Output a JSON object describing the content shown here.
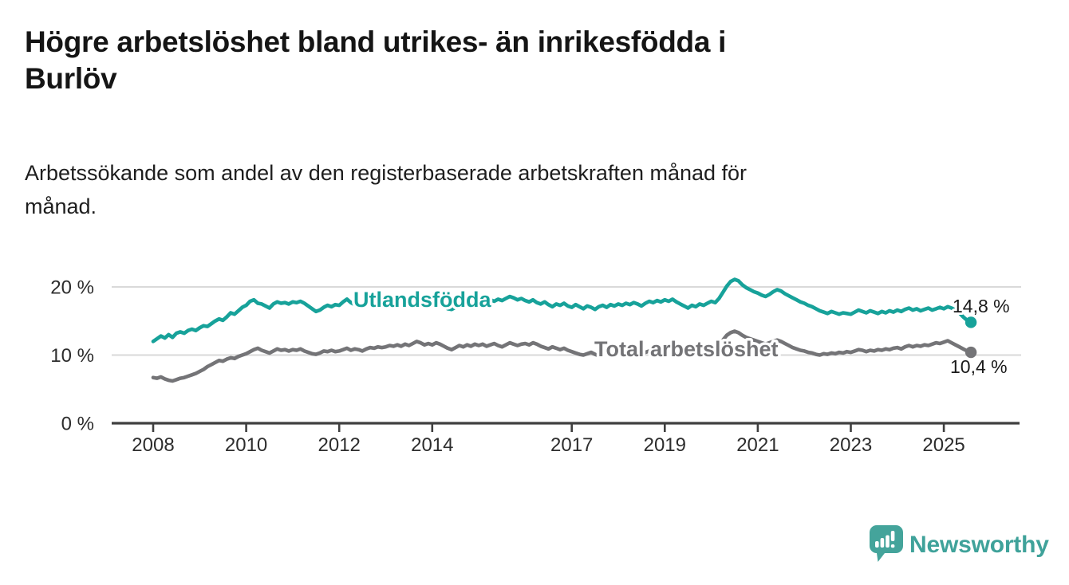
{
  "header": {
    "title": "Högre arbetslöshet bland utrikes- än inrikesfödda i Burlöv",
    "title_lines": [
      "Högre arbetslöshet bland utrikes- än inrikesfödda i",
      "Burlöv"
    ],
    "subtitle": "Arbetssökande som andel av den registerbaserade arbetskraften månad för månad.",
    "subtitle_lines": [
      "Arbetssökande som andel av den registerbaserade arbetskraften månad för",
      "månad."
    ]
  },
  "chart_data": {
    "type": "line",
    "title": "Högre arbetslöshet bland utrikes- än inrikesfödda i Burlöv",
    "xlabel": "",
    "ylabel": "",
    "x_unit": "month",
    "x_start": "2008-01",
    "x_end": "2025-08",
    "ylim": [
      0,
      23.5
    ],
    "grid": "horizontal-only",
    "legend": "inline-labels",
    "x_tick_labels": [
      "2008",
      "2010",
      "2012",
      "2014",
      "2017",
      "2019",
      "2021",
      "2023",
      "2025"
    ],
    "y_ticks": [
      {
        "value": 20,
        "label": "20 %"
      },
      {
        "value": 10,
        "label": "10 %"
      },
      {
        "value": 0,
        "label": "0 %"
      }
    ],
    "series": [
      {
        "name": "Utlandsfödda",
        "color": "#17a29a",
        "end_label": "14,8 %",
        "end_value": 14.8,
        "values": [
          12.0,
          12.4,
          12.8,
          12.5,
          13.0,
          12.6,
          13.2,
          13.4,
          13.2,
          13.6,
          13.8,
          13.6,
          14.0,
          14.3,
          14.2,
          14.6,
          15.0,
          15.3,
          15.1,
          15.6,
          16.2,
          16.0,
          16.5,
          17.0,
          17.3,
          17.9,
          18.1,
          17.6,
          17.5,
          17.2,
          16.9,
          17.5,
          17.8,
          17.6,
          17.7,
          17.5,
          17.8,
          17.7,
          17.9,
          17.6,
          17.2,
          16.8,
          16.4,
          16.6,
          17.0,
          17.3,
          17.1,
          17.4,
          17.3,
          17.8,
          18.2,
          17.7,
          17.4,
          17.3,
          17.0,
          17.4,
          17.6,
          17.5,
          17.8,
          17.6,
          17.7,
          17.9,
          18.0,
          17.8,
          18.2,
          17.9,
          17.6,
          18.0,
          17.7,
          17.9,
          17.6,
          17.8,
          17.8,
          17.5,
          17.9,
          17.2,
          16.8,
          16.7,
          17.0,
          17.4,
          17.7,
          17.9,
          17.6,
          17.8,
          17.7,
          18.0,
          17.8,
          18.1,
          17.9,
          18.2,
          18.0,
          18.3,
          18.6,
          18.4,
          18.1,
          18.3,
          18.0,
          17.8,
          18.1,
          17.7,
          17.5,
          17.8,
          17.4,
          17.1,
          17.5,
          17.3,
          17.6,
          17.2,
          17.0,
          17.4,
          17.1,
          16.8,
          17.2,
          17.0,
          16.7,
          17.1,
          17.3,
          17.0,
          17.4,
          17.2,
          17.5,
          17.3,
          17.6,
          17.4,
          17.7,
          17.5,
          17.2,
          17.6,
          17.9,
          17.7,
          18.0,
          17.8,
          18.1,
          17.9,
          18.2,
          17.8,
          17.5,
          17.2,
          16.9,
          17.3,
          17.1,
          17.5,
          17.3,
          17.6,
          17.9,
          17.7,
          18.3,
          19.2,
          20.1,
          20.8,
          21.1,
          20.9,
          20.3,
          19.9,
          19.6,
          19.3,
          19.1,
          18.8,
          18.6,
          18.9,
          19.3,
          19.6,
          19.4,
          19.0,
          18.7,
          18.4,
          18.1,
          17.8,
          17.6,
          17.3,
          17.1,
          16.8,
          16.5,
          16.3,
          16.1,
          16.4,
          16.2,
          16.0,
          16.2,
          16.1,
          16.0,
          16.3,
          16.6,
          16.4,
          16.2,
          16.5,
          16.3,
          16.1,
          16.4,
          16.2,
          16.5,
          16.3,
          16.6,
          16.4,
          16.7,
          16.9,
          16.6,
          16.8,
          16.5,
          16.7,
          16.9,
          16.6,
          16.8,
          17.0,
          16.8,
          17.1,
          16.9,
          16.6,
          16.2,
          15.6,
          15.1,
          14.8
        ]
      },
      {
        "name": "Total arbetslöshet",
        "color": "#747477",
        "end_label": "10,4 %",
        "end_value": 10.4,
        "values": [
          6.7,
          6.6,
          6.8,
          6.5,
          6.3,
          6.2,
          6.4,
          6.6,
          6.7,
          6.9,
          7.1,
          7.3,
          7.6,
          7.9,
          8.3,
          8.6,
          8.9,
          9.2,
          9.1,
          9.4,
          9.6,
          9.5,
          9.8,
          10.0,
          10.2,
          10.5,
          10.8,
          11.0,
          10.7,
          10.5,
          10.3,
          10.6,
          10.9,
          10.7,
          10.8,
          10.6,
          10.8,
          10.7,
          10.9,
          10.6,
          10.4,
          10.2,
          10.1,
          10.3,
          10.6,
          10.5,
          10.7,
          10.5,
          10.6,
          10.8,
          11.0,
          10.7,
          10.9,
          10.8,
          10.6,
          10.9,
          11.1,
          11.0,
          11.2,
          11.1,
          11.2,
          11.4,
          11.3,
          11.5,
          11.3,
          11.6,
          11.4,
          11.7,
          12.0,
          11.8,
          11.5,
          11.7,
          11.5,
          11.8,
          11.6,
          11.3,
          11.0,
          10.8,
          11.1,
          11.4,
          11.2,
          11.5,
          11.3,
          11.6,
          11.4,
          11.6,
          11.3,
          11.5,
          11.7,
          11.4,
          11.2,
          11.5,
          11.8,
          11.6,
          11.4,
          11.6,
          11.7,
          11.5,
          11.8,
          11.6,
          11.3,
          11.1,
          10.9,
          11.2,
          11.0,
          10.8,
          11.0,
          10.7,
          10.5,
          10.3,
          10.1,
          10.0,
          10.2,
          10.4,
          10.1,
          9.9,
          10.2,
          10.4,
          10.3,
          10.5,
          10.3,
          10.5,
          10.4,
          10.2,
          10.5,
          10.3,
          10.1,
          10.4,
          10.6,
          10.4,
          10.6,
          10.5,
          10.7,
          10.5,
          10.8,
          10.6,
          10.4,
          10.2,
          10.5,
          10.3,
          10.6,
          10.8,
          10.7,
          10.9,
          11.1,
          11.0,
          11.5,
          12.2,
          12.9,
          13.3,
          13.5,
          13.3,
          12.9,
          12.6,
          12.4,
          12.2,
          12.0,
          11.8,
          11.6,
          11.8,
          12.0,
          12.2,
          12.0,
          11.7,
          11.4,
          11.1,
          10.9,
          10.7,
          10.6,
          10.4,
          10.3,
          10.1,
          10.0,
          10.2,
          10.1,
          10.3,
          10.2,
          10.4,
          10.3,
          10.5,
          10.4,
          10.6,
          10.8,
          10.7,
          10.5,
          10.7,
          10.6,
          10.8,
          10.7,
          10.9,
          10.8,
          11.0,
          11.1,
          10.9,
          11.2,
          11.4,
          11.2,
          11.4,
          11.3,
          11.5,
          11.4,
          11.6,
          11.8,
          11.7,
          11.9,
          12.1,
          11.8,
          11.5,
          11.2,
          10.9,
          10.6,
          10.4
        ]
      }
    ]
  },
  "branding": {
    "logo_text": "Newsworthy",
    "logo_color": "#3fa29a",
    "icon_color": "#44a49b"
  }
}
